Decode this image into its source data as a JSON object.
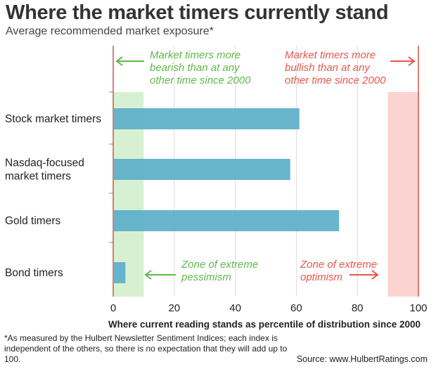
{
  "title": "Where the market timers currently stand",
  "subtitle": "Average recommended market exposure*",
  "footnote": "*As measured by the Hulbert Newsletter Sentiment Indices; each index is independent of the others, so there is no expectation that they will add up to 100.",
  "source": "Source: www.HulbertRatings.com",
  "colors": {
    "bar": "#5bafc9",
    "pessimism_zone": "#d8f0d2",
    "optimism_zone": "#fbd3d1",
    "green_text": "#5fb848",
    "red_text": "#e8574b",
    "red_line": "#c93a30",
    "grid": "#dddddd"
  },
  "chart_data": {
    "type": "bar",
    "orientation": "horizontal",
    "categories": [
      "Stock market timers",
      "Nasdaq-focused\nmarket timers",
      "Gold timers",
      "Bond timers"
    ],
    "values": [
      61,
      58,
      74,
      4
    ],
    "xlabel": "Where current reading stands as percentile of distribution since 2000",
    "xlim": [
      0,
      100
    ],
    "xticks": [
      0,
      20,
      40,
      60,
      80,
      100
    ],
    "grid": true,
    "zones": [
      {
        "from": 0,
        "to": 10,
        "label": "Zone of extreme\npessimism",
        "color_key": "pessimism_zone"
      },
      {
        "from": 90,
        "to": 100,
        "label": "Zone of extreme\noptimism",
        "color_key": "optimism_zone"
      }
    ],
    "annotations": [
      {
        "text": "Market timers more\nbearish than at any\nother time since 2000",
        "color_key": "green_text"
      },
      {
        "text": "Market timers more\nbullish than at any\nother time since 2000",
        "color_key": "red_text"
      }
    ]
  }
}
